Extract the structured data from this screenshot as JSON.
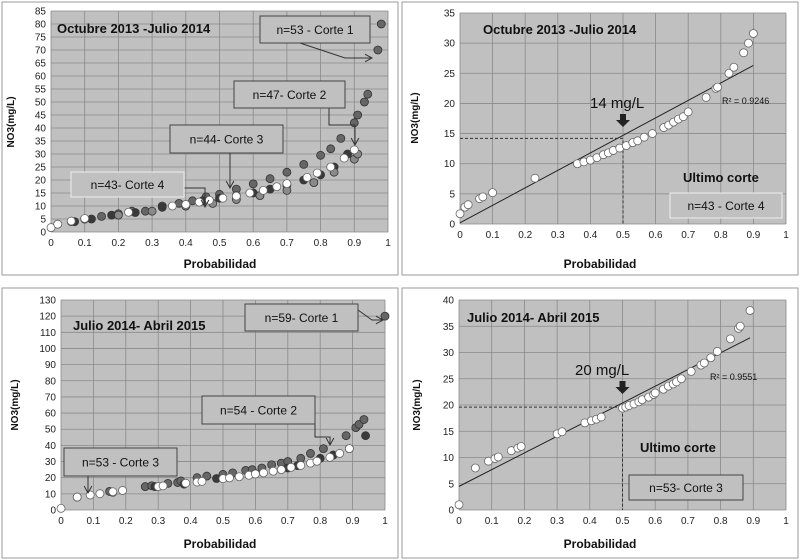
{
  "chart_data": [
    {
      "type": "scatter",
      "title": "Octubre 2013 -Julio 2014",
      "xlabel": "Probabilidad",
      "ylabel": "NO3(mg/L)",
      "xlim": [
        0,
        1
      ],
      "ylim": [
        0,
        85
      ],
      "xticks": [
        0,
        0.1,
        0.2,
        0.3,
        0.4,
        0.5,
        0.6,
        0.7,
        0.8,
        0.9,
        1
      ],
      "yticks": [
        0,
        5,
        10,
        15,
        20,
        25,
        30,
        35,
        40,
        45,
        50,
        55,
        60,
        65,
        70,
        75,
        80,
        85
      ],
      "grid": true,
      "plot_bg": "#c0c0c0",
      "series": [
        {
          "name": "n=53 - Corte 1",
          "color": "#666666",
          "points": [
            [
              0.06,
              4
            ],
            [
              0.1,
              5
            ],
            [
              0.15,
              6
            ],
            [
              0.2,
              7
            ],
            [
              0.24,
              8
            ],
            [
              0.28,
              8
            ],
            [
              0.33,
              10
            ],
            [
              0.38,
              11
            ],
            [
              0.42,
              12
            ],
            [
              0.46,
              13.5
            ],
            [
              0.5,
              14.5
            ],
            [
              0.55,
              16.5
            ],
            [
              0.6,
              18.5
            ],
            [
              0.65,
              20.5
            ],
            [
              0.7,
              23
            ],
            [
              0.75,
              26
            ],
            [
              0.8,
              29.5
            ],
            [
              0.83,
              32
            ],
            [
              0.86,
              36
            ],
            [
              0.9,
              42
            ],
            [
              0.91,
              45
            ],
            [
              0.93,
              50
            ],
            [
              0.94,
              53
            ],
            [
              0.97,
              70
            ],
            [
              0.98,
              80
            ]
          ]
        },
        {
          "name": "n=47- Corte 2",
          "color": "#3a3a3a",
          "points": [
            [
              0.07,
              4
            ],
            [
              0.12,
              5
            ],
            [
              0.18,
              6.5
            ],
            [
              0.25,
              7.5
            ],
            [
              0.33,
              9.5
            ],
            [
              0.4,
              10
            ],
            [
              0.45,
              12
            ],
            [
              0.5,
              13
            ],
            [
              0.55,
              14
            ],
            [
              0.6,
              15
            ],
            [
              0.65,
              16.5
            ],
            [
              0.7,
              18
            ],
            [
              0.75,
              20
            ],
            [
              0.8,
              22
            ],
            [
              0.84,
              25
            ],
            [
              0.88,
              30
            ]
          ]
        },
        {
          "name": "n=44- Corte 3",
          "color": "#8a8a8a",
          "points": [
            [
              0.02,
              3
            ],
            [
              0.1,
              5
            ],
            [
              0.2,
              6.5
            ],
            [
              0.3,
              8
            ],
            [
              0.4,
              10
            ],
            [
              0.48,
              11
            ],
            [
              0.55,
              12.5
            ],
            [
              0.62,
              14
            ],
            [
              0.7,
              16
            ],
            [
              0.78,
              19
            ],
            [
              0.84,
              23
            ],
            [
              0.9,
              28
            ],
            [
              0.91,
              30
            ]
          ]
        },
        {
          "name": "n=43- Corte 4",
          "color": "#ffffff",
          "points": [
            [
              0,
              1.7
            ],
            [
              0.02,
              3
            ],
            [
              0.06,
              4.2
            ],
            [
              0.1,
              5.2
            ],
            [
              0.23,
              7.6
            ],
            [
              0.36,
              10
            ],
            [
              0.4,
              10.6
            ],
            [
              0.44,
              11.5
            ],
            [
              0.47,
              12.2
            ],
            [
              0.51,
              13
            ],
            [
              0.55,
              13.8
            ],
            [
              0.59,
              15
            ],
            [
              0.63,
              16
            ],
            [
              0.67,
              17.4
            ],
            [
              0.7,
              18.6
            ],
            [
              0.76,
              21
            ],
            [
              0.79,
              22.7
            ],
            [
              0.83,
              25
            ],
            [
              0.87,
              28.4
            ],
            [
              0.9,
              31.6
            ]
          ]
        }
      ],
      "annotations": [
        "n=53 - Corte 1",
        "n=47- Corte 2",
        "n=44- Corte 3",
        "n=43- Corte 4"
      ]
    },
    {
      "type": "scatter",
      "title": "Octubre 2013 -Julio 2014",
      "xlabel": "Probabilidad",
      "ylabel": "NO3(mg/L)",
      "xlim": [
        0,
        1
      ],
      "ylim": [
        0,
        35
      ],
      "xticks": [
        0,
        0.1,
        0.2,
        0.3,
        0.4,
        0.5,
        0.6,
        0.7,
        0.8,
        0.9,
        1
      ],
      "yticks": [
        0,
        5,
        10,
        15,
        20,
        25,
        30,
        35
      ],
      "grid": true,
      "plot_bg": "#c0c0c0",
      "series": [
        {
          "color": "#ffffff",
          "points": [
            [
              0,
              1.7
            ],
            [
              0.015,
              2.8
            ],
            [
              0.025,
              3.2
            ],
            [
              0.06,
              4.2
            ],
            [
              0.07,
              4.5
            ],
            [
              0.1,
              5.2
            ],
            [
              0.23,
              7.6
            ],
            [
              0.36,
              10
            ],
            [
              0.38,
              10.3
            ],
            [
              0.4,
              10.6
            ],
            [
              0.42,
              11
            ],
            [
              0.44,
              11.5
            ],
            [
              0.455,
              11.8
            ],
            [
              0.47,
              12.2
            ],
            [
              0.49,
              12.6
            ],
            [
              0.51,
              13
            ],
            [
              0.53,
              13.5
            ],
            [
              0.545,
              13.8
            ],
            [
              0.565,
              14.4
            ],
            [
              0.59,
              15
            ],
            [
              0.625,
              16
            ],
            [
              0.64,
              16.4
            ],
            [
              0.655,
              16.9
            ],
            [
              0.67,
              17.4
            ],
            [
              0.685,
              17.8
            ],
            [
              0.7,
              18.6
            ],
            [
              0.755,
              21
            ],
            [
              0.785,
              22.5
            ],
            [
              0.79,
              22.7
            ],
            [
              0.825,
              25
            ],
            [
              0.84,
              26
            ],
            [
              0.87,
              28.4
            ],
            [
              0.885,
              30
            ],
            [
              0.9,
              31.6
            ]
          ]
        }
      ],
      "trendline": {
        "x": [
          0,
          0.9
        ],
        "y": [
          0.2,
          26.3
        ]
      },
      "r2_label": "R² = 0.9246",
      "median_label": "14 mg/L",
      "median": {
        "x": 0.5,
        "y": 14.2
      },
      "note": "Ultimo corte",
      "annotations": [
        "n=43 - Corte 4"
      ]
    },
    {
      "type": "scatter",
      "title": "Julio 2014- Abril 2015",
      "xlabel": "Probabilidad",
      "ylabel": "NO3(mg/L)",
      "xlim": [
        0,
        1
      ],
      "ylim": [
        0,
        130
      ],
      "xticks": [
        0,
        0.1,
        0.2,
        0.3,
        0.4,
        0.5,
        0.6,
        0.7,
        0.8,
        0.9,
        1
      ],
      "yticks": [
        0,
        10,
        20,
        30,
        40,
        50,
        60,
        70,
        80,
        90,
        100,
        110,
        120,
        130
      ],
      "grid": true,
      "plot_bg": "#c0c0c0",
      "series": [
        {
          "name": "n=59- Corte 1",
          "color": "#666666",
          "points": [
            [
              0.05,
              8
            ],
            [
              0.15,
              11.5
            ],
            [
              0.26,
              14.5
            ],
            [
              0.28,
              15
            ],
            [
              0.33,
              16.5
            ],
            [
              0.36,
              17
            ],
            [
              0.37,
              18
            ],
            [
              0.42,
              20
            ],
            [
              0.45,
              21
            ],
            [
              0.5,
              22
            ],
            [
              0.53,
              23
            ],
            [
              0.57,
              24.5
            ],
            [
              0.59,
              25
            ],
            [
              0.62,
              26
            ],
            [
              0.65,
              28
            ],
            [
              0.68,
              29
            ],
            [
              0.7,
              30
            ],
            [
              0.74,
              32
            ],
            [
              0.77,
              35
            ],
            [
              0.81,
              38
            ],
            [
              0.88,
              46
            ],
            [
              0.91,
              51
            ],
            [
              0.92,
              53
            ],
            [
              0.935,
              56
            ],
            [
              1.0,
              120
            ]
          ]
        },
        {
          "name": "n=54 - Corte 2",
          "color": "#3a3a3a",
          "points": [
            [
              0.16,
              11
            ],
            [
              0.29,
              14.5
            ],
            [
              0.38,
              16
            ],
            [
              0.48,
              19.5
            ],
            [
              0.6,
              22.5
            ],
            [
              0.7,
              26
            ],
            [
              0.73,
              27.5
            ],
            [
              0.8,
              32
            ],
            [
              0.84,
              34
            ],
            [
              0.89,
              38
            ],
            [
              0.94,
              46
            ]
          ]
        },
        {
          "name": "n=53 - Corte 3",
          "color": "#ffffff",
          "points": [
            [
              0,
              1
            ],
            [
              0.05,
              8
            ],
            [
              0.09,
              9.3
            ],
            [
              0.12,
              10.1
            ],
            [
              0.16,
              11.3
            ],
            [
              0.19,
              12.1
            ],
            [
              0.3,
              14.5
            ],
            [
              0.315,
              14.9
            ],
            [
              0.385,
              16.6
            ],
            [
              0.42,
              17.3
            ],
            [
              0.435,
              17.7
            ],
            [
              0.5,
              19.4
            ],
            [
              0.52,
              19.9
            ],
            [
              0.55,
              20.6
            ],
            [
              0.58,
              21.5
            ],
            [
              0.6,
              22.3
            ],
            [
              0.625,
              23
            ],
            [
              0.655,
              24
            ],
            [
              0.68,
              25
            ],
            [
              0.71,
              26.4
            ],
            [
              0.74,
              27.6
            ],
            [
              0.77,
              29
            ],
            [
              0.79,
              30.2
            ],
            [
              0.83,
              32.6
            ],
            [
              0.86,
              35
            ],
            [
              0.89,
              38
            ]
          ]
        }
      ],
      "annotations": [
        "n=59- Corte 1",
        "n=54 - Corte 2",
        "n=53 - Corte 3"
      ]
    },
    {
      "type": "scatter",
      "title": "Julio 2014- Abril 2015",
      "xlabel": "Probabilidad",
      "ylabel": "NO3(mg/L)",
      "xlim": [
        0,
        1
      ],
      "ylim": [
        0,
        40
      ],
      "xticks": [
        0,
        0.1,
        0.2,
        0.3,
        0.4,
        0.5,
        0.6,
        0.7,
        0.8,
        0.9,
        1
      ],
      "yticks": [
        0,
        5,
        10,
        15,
        20,
        25,
        30,
        35,
        40
      ],
      "grid": true,
      "plot_bg": "#c0c0c0",
      "series": [
        {
          "color": "#ffffff",
          "points": [
            [
              0,
              1
            ],
            [
              0.05,
              8
            ],
            [
              0.09,
              9.3
            ],
            [
              0.11,
              9.8
            ],
            [
              0.12,
              10.1
            ],
            [
              0.16,
              11.3
            ],
            [
              0.18,
              11.8
            ],
            [
              0.19,
              12.1
            ],
            [
              0.3,
              14.5
            ],
            [
              0.315,
              14.9
            ],
            [
              0.385,
              16.6
            ],
            [
              0.405,
              17
            ],
            [
              0.42,
              17.3
            ],
            [
              0.435,
              17.7
            ],
            [
              0.5,
              19.4
            ],
            [
              0.51,
              19.6
            ],
            [
              0.52,
              19.9
            ],
            [
              0.535,
              20.2
            ],
            [
              0.55,
              20.6
            ],
            [
              0.56,
              21
            ],
            [
              0.58,
              21.5
            ],
            [
              0.595,
              22
            ],
            [
              0.6,
              22.3
            ],
            [
              0.625,
              23
            ],
            [
              0.64,
              23.6
            ],
            [
              0.655,
              24
            ],
            [
              0.665,
              24.4
            ],
            [
              0.68,
              25
            ],
            [
              0.71,
              26.4
            ],
            [
              0.74,
              27.6
            ],
            [
              0.75,
              28
            ],
            [
              0.77,
              29
            ],
            [
              0.79,
              30.2
            ],
            [
              0.83,
              32.6
            ],
            [
              0.855,
              34.6
            ],
            [
              0.86,
              35
            ],
            [
              0.89,
              38
            ]
          ]
        }
      ],
      "trendline": {
        "x": [
          0,
          0.89
        ],
        "y": [
          4.5,
          32.8
        ]
      },
      "r2_label": "R² = 0.9551",
      "median_label": "20 mg/L",
      "median": {
        "x": 0.5,
        "y": 19.6
      },
      "note": "Ultimo corte",
      "annotations": [
        "n=53- Corte 3"
      ]
    }
  ]
}
